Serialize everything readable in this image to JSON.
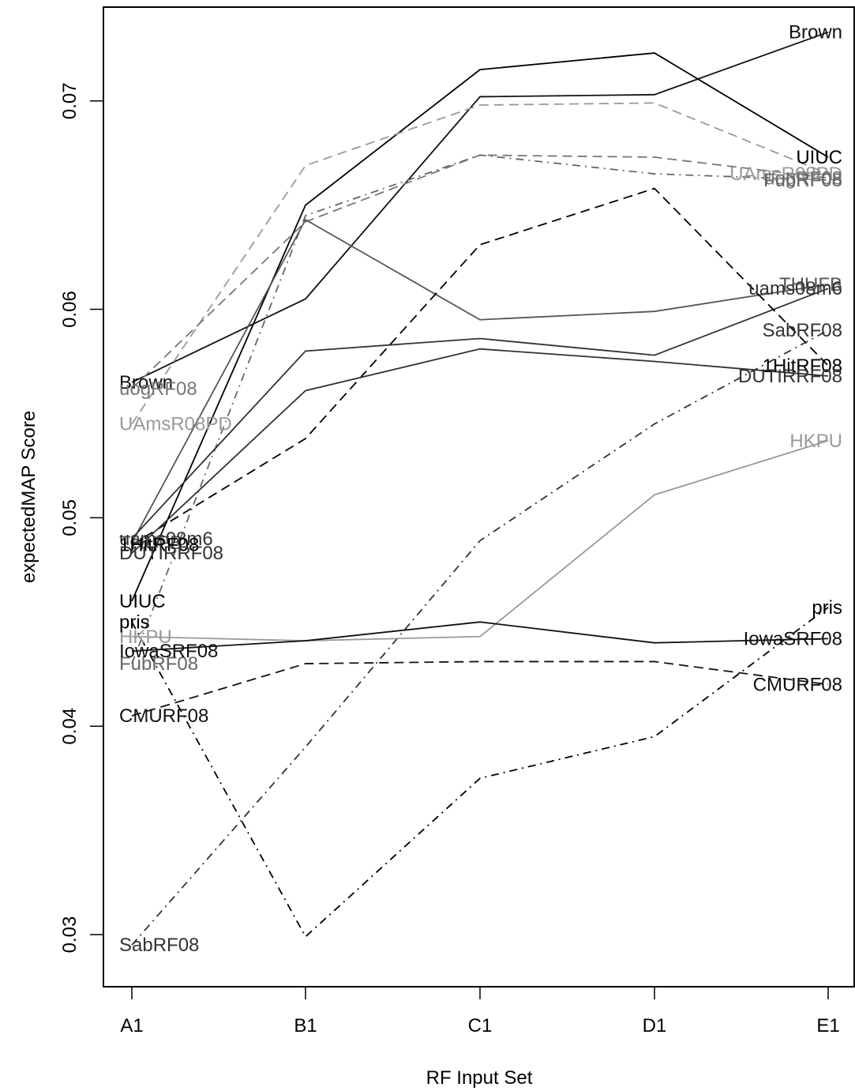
{
  "chart_data": {
    "type": "line",
    "xlabel": "RF Input Set",
    "ylabel": "expectedMAP Score",
    "categories": [
      "A1",
      "B1",
      "C1",
      "D1",
      "E1"
    ],
    "ylim": [
      0.0275,
      0.0745
    ],
    "yticks": [
      0.03,
      0.04,
      0.05,
      0.06,
      0.07
    ],
    "ytick_labels": [
      "0.03",
      "0.04",
      "0.05",
      "0.06",
      "0.07"
    ],
    "grid": false,
    "series": [
      {
        "name": "Brown",
        "values": [
          0.0565,
          0.0605,
          0.0702,
          0.0703,
          0.0733
        ],
        "color": "#111111",
        "dash": "solid",
        "label_left": "Brown",
        "label_right": "Brown"
      },
      {
        "name": "UIUC",
        "values": [
          0.046,
          0.065,
          0.0715,
          0.0723,
          0.0673
        ],
        "color": "#000000",
        "dash": "solid",
        "label_left": "UIUC",
        "label_right": "UIUC"
      },
      {
        "name": "UAmsR08PD",
        "values": [
          0.0545,
          0.0669,
          0.0698,
          0.0699,
          0.0665
        ],
        "color": "#999999",
        "dash": "dashed",
        "label_left": "UAmsR08PD",
        "label_right": "UAmsR08PD"
      },
      {
        "name": "uogRF08",
        "values": [
          0.0562,
          0.0642,
          0.0674,
          0.0673,
          0.0663
        ],
        "color": "#777777",
        "dash": "dashed",
        "label_left": "uogRF08",
        "label_right": "uogRF08"
      },
      {
        "name": "FubRF08",
        "values": [
          0.043,
          0.0645,
          0.0674,
          0.0665,
          0.0662
        ],
        "color": "#666666",
        "dash": "dashdot",
        "label_left": "FubRF08",
        "label_right": "FubRF08"
      },
      {
        "name": "THUFB",
        "values": [
          0.0488,
          0.0643,
          0.0595,
          0.0599,
          0.0612
        ],
        "color": "#555555",
        "dash": "solid",
        "label_left": "THUFB",
        "label_right": "THUFB"
      },
      {
        "name": "uams08m6",
        "values": [
          0.049,
          0.058,
          0.0586,
          0.0578,
          0.061
        ],
        "color": "#333333",
        "dash": "solid",
        "label_left": "uams08m6",
        "label_right": "uams08m6"
      },
      {
        "name": "1HitRF08",
        "values": [
          0.0487,
          0.0538,
          0.0631,
          0.0658,
          0.0573
        ],
        "color": "#000000",
        "dash": "dashed",
        "label_left": "1HitRF08",
        "label_right": "1HitRF08"
      },
      {
        "name": "DUTIRRF08",
        "values": [
          0.0483,
          0.0561,
          0.0581,
          0.0575,
          0.0568
        ],
        "color": "#333333",
        "dash": "solid",
        "label_left": "DUTIRRF08",
        "label_right": "DUTIRRF08"
      },
      {
        "name": "SabRF08",
        "values": [
          0.0295,
          0.039,
          0.0489,
          0.0545,
          0.059
        ],
        "color": "#333333",
        "dash": "dashdot",
        "label_left": "SabRF08",
        "label_right": "SabRF08"
      },
      {
        "name": "HKPU",
        "values": [
          0.0443,
          0.0441,
          0.0443,
          0.0511,
          0.0537
        ],
        "color": "#999999",
        "dash": "solid",
        "label_left": "HKPU",
        "label_right": "HKPU"
      },
      {
        "name": "pris",
        "values": [
          0.045,
          0.0299,
          0.0375,
          0.0395,
          0.0457
        ],
        "color": "#000000",
        "dash": "dashdot",
        "label_left": "pris",
        "label_right": "pris"
      },
      {
        "name": "IowaSRF08",
        "values": [
          0.0436,
          0.0441,
          0.045,
          0.044,
          0.0442
        ],
        "color": "#111111",
        "dash": "solid",
        "label_left": "IowaSRF08",
        "label_right": "IowaSRF08"
      },
      {
        "name": "CMURF08",
        "values": [
          0.0405,
          0.043,
          0.0431,
          0.0431,
          0.042
        ],
        "color": "#111111",
        "dash": "dashed",
        "label_left": "CMURF08",
        "label_right": "CMURF08"
      }
    ]
  }
}
